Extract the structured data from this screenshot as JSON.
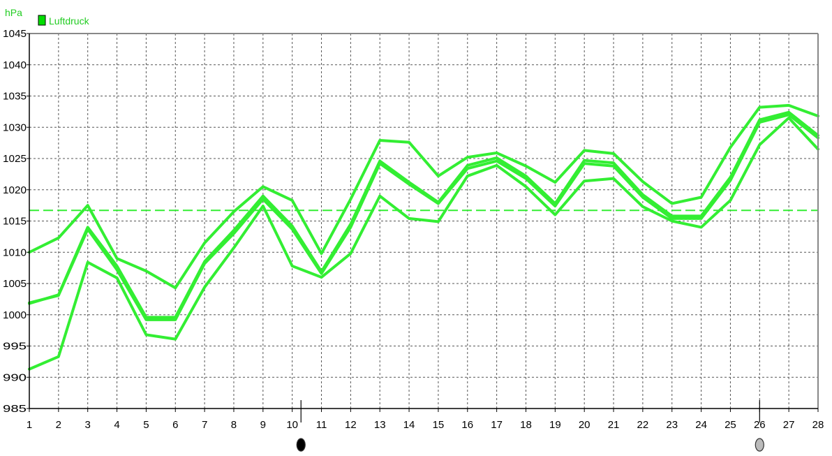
{
  "chart_data": {
    "type": "line",
    "unit_label": "hPa",
    "legend": [
      {
        "label": "Luftdruck",
        "color": "#00dd00"
      }
    ],
    "line_color": "#33ee33",
    "x": [
      1,
      2,
      3,
      4,
      5,
      6,
      7,
      8,
      9,
      10,
      11,
      12,
      13,
      14,
      15,
      16,
      17,
      18,
      19,
      20,
      21,
      22,
      23,
      24,
      25,
      26,
      27,
      28
    ],
    "xlim": [
      1,
      28
    ],
    "ylim": [
      985,
      1045
    ],
    "yticks": [
      985,
      990,
      995,
      1000,
      1005,
      1010,
      1015,
      1020,
      1025,
      1030,
      1035,
      1040,
      1045
    ],
    "grid": true,
    "legend_position": "top-left",
    "series": [
      {
        "values": [
          1010,
          1012.3,
          1017.5,
          1009,
          1007,
          1004.3,
          1011.5,
          1016.5,
          1020.5,
          1018.3,
          1009.8,
          1018.5,
          1027.9,
          1027.6,
          1022.2,
          1025.2,
          1025.9,
          1023.8,
          1021.2,
          1026.3,
          1025.8,
          1021.3,
          1017.8,
          1018.8,
          1026.8,
          1033.2,
          1033.5,
          1031.8
        ]
      },
      {
        "values": [
          1001.8,
          1003.2,
          1014,
          1007.8,
          999.6,
          999.6,
          1008.5,
          1013.5,
          1019,
          1014.2,
          1006.9,
          1014.5,
          1024.6,
          1021.2,
          1018,
          1023.9,
          1025.1,
          1022.2,
          1017.8,
          1024.7,
          1024.3,
          1019.2,
          1015.8,
          1015.8,
          1022,
          1031.2,
          1032.4,
          1028.7
        ]
      },
      {
        "values": [
          991.3,
          993.3,
          1008.4,
          1005.9,
          996.8,
          996.1,
          1004.4,
          1010.7,
          1017.4,
          1007.8,
          1006,
          1009.8,
          1019,
          1015.4,
          1014.9,
          1022.2,
          1023.9,
          1020.5,
          1016,
          1021.4,
          1021.8,
          1017.3,
          1015,
          1014,
          1018.3,
          1027.2,
          1031.5,
          1026.5
        ]
      },
      {
        "values": [
          1001.9,
          1003.1,
          1013.7,
          1007.2,
          999.2,
          999.2,
          1008.2,
          1013,
          1018.5,
          1013.7,
          1006.6,
          1014,
          1024.2,
          1020.9,
          1017.8,
          1023.4,
          1024.6,
          1021.8,
          1017.4,
          1024.2,
          1023.8,
          1018.8,
          1015.4,
          1015.4,
          1021.5,
          1030.8,
          1032,
          1028.3
        ]
      }
    ],
    "reference_line": {
      "y": 1016.7,
      "style": "dashed"
    },
    "markers": [
      {
        "x": 10.3,
        "symbol": "new-moon",
        "color": "#000000"
      },
      {
        "x": 26,
        "symbol": "full-moon",
        "color": "#bbbbbb"
      }
    ]
  }
}
